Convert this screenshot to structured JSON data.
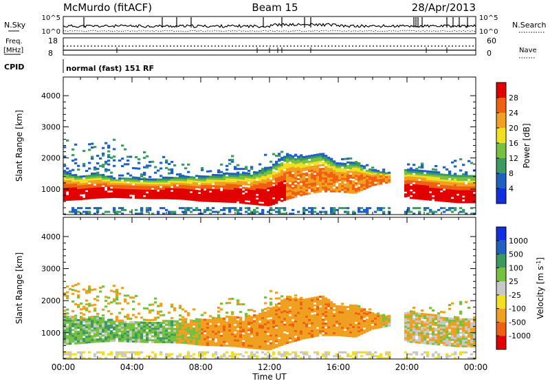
{
  "header": {
    "station": "McMurdo (fitACF)",
    "beam": "Beam 15",
    "date": "28/Apr/2013"
  },
  "top_panels": {
    "nsky_label": "N.Sky",
    "nsearch_label": "N.Search",
    "nsky_ticks": [
      "10^5",
      "10^0"
    ],
    "nsearch_ticks": [
      "10^5",
      "10^0"
    ],
    "freq_label": "Freq.",
    "freq_unit": "[MHz]",
    "freq_ticks": [
      "18",
      "8"
    ],
    "nave_label": "Nave",
    "nave_ticks": [
      "60",
      "0"
    ],
    "cpid_label": "CPID",
    "cpid_text": "normal (fast) 151 RF"
  },
  "colors": {
    "power_scale": [
      "#1030e0",
      "#2060c0",
      "#3a9a60",
      "#78c040",
      "#f0e020",
      "#f0a020",
      "#f06010",
      "#e00000"
    ],
    "velocity_scale": [
      "#e00000",
      "#f06010",
      "#f0a020",
      "#f0e020",
      "#c8c8c8",
      "#78c040",
      "#3a9a60",
      "#2060c0",
      "#1030e0"
    ]
  },
  "chart_data": [
    {
      "type": "heatmap",
      "panel": "power",
      "ylabel": "Slant Range [km]",
      "ylim": [
        180,
        4600
      ],
      "y_ticks": [
        "1000",
        "2000",
        "3000",
        "4000"
      ],
      "x_ticks": [
        "00:00",
        "04:00",
        "08:00",
        "12:00",
        "16:00",
        "20:00",
        "00:00"
      ],
      "colorbar_label": "Power [dB]",
      "colorbar_ticks": [
        "28",
        "24",
        "20",
        "16",
        "12",
        "8",
        "4"
      ]
    },
    {
      "type": "heatmap",
      "panel": "velocity",
      "ylabel": "Slant Range [km]",
      "xlabel": "Time UT",
      "ylim": [
        180,
        4600
      ],
      "y_ticks": [
        "1000",
        "2000",
        "3000",
        "4000"
      ],
      "x_ticks": [
        "00:00",
        "04:00",
        "08:00",
        "12:00",
        "16:00",
        "20:00",
        "00:00"
      ],
      "colorbar_label": "Velocity [m s",
      "colorbar_label_sup": "-1",
      "colorbar_label_end": "]",
      "colorbar_ticks": [
        "1000",
        "500",
        "100",
        "25",
        "-25",
        "-100",
        "-500",
        "-1000"
      ]
    }
  ]
}
